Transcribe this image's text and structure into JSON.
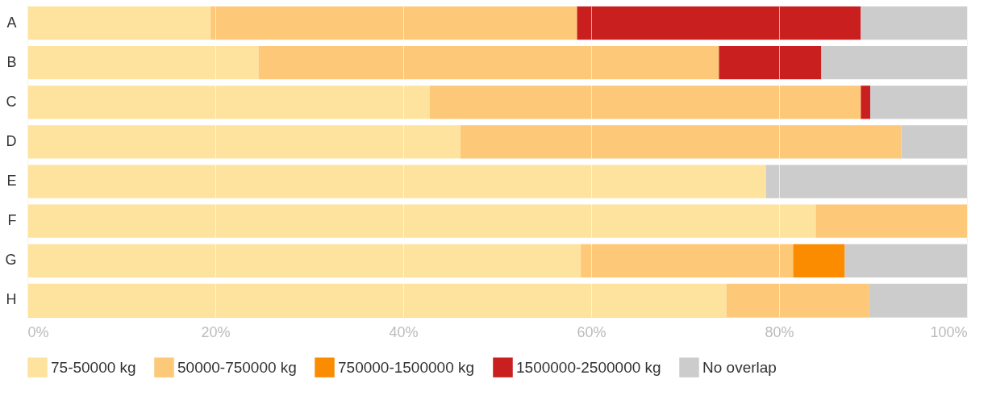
{
  "chart_data": {
    "type": "bar",
    "orientation": "horizontal",
    "stacked": true,
    "categories": [
      "A",
      "B",
      "C",
      "D",
      "E",
      "F",
      "G",
      "H"
    ],
    "series": [
      {
        "name": "75-50000 kg",
        "color": "#fee39f",
        "values": [
          19.5,
          24.6,
          42.8,
          46.1,
          78.6,
          83.9,
          58.9,
          74.4
        ]
      },
      {
        "name": "50000-750000 kg",
        "color": "#fdc877",
        "values": [
          39.0,
          49.0,
          45.9,
          46.9,
          0,
          16.1,
          22.6,
          15.2
        ]
      },
      {
        "name": "750000-1500000 kg",
        "color": "#fb8c00",
        "values": [
          0,
          0,
          0,
          0,
          0,
          0,
          5.5,
          0
        ]
      },
      {
        "name": "1500000-2500000 kg",
        "color": "#c91f1f",
        "values": [
          30.2,
          10.9,
          1.0,
          0,
          0,
          0,
          0,
          0
        ]
      },
      {
        "name": "No overlap",
        "color": "#cccccc",
        "values": [
          11.3,
          15.5,
          10.3,
          7.0,
          21.4,
          0,
          13.0,
          10.4
        ]
      }
    ],
    "xlim": [
      0,
      100
    ],
    "xticks": [
      {
        "value": 0,
        "label": "0%"
      },
      {
        "value": 20,
        "label": "20%"
      },
      {
        "value": 40,
        "label": "40%"
      },
      {
        "value": 60,
        "label": "60%"
      },
      {
        "value": 80,
        "label": "80%"
      },
      {
        "value": 100,
        "label": "100%"
      }
    ],
    "grid": "x",
    "legend": "bottom"
  }
}
